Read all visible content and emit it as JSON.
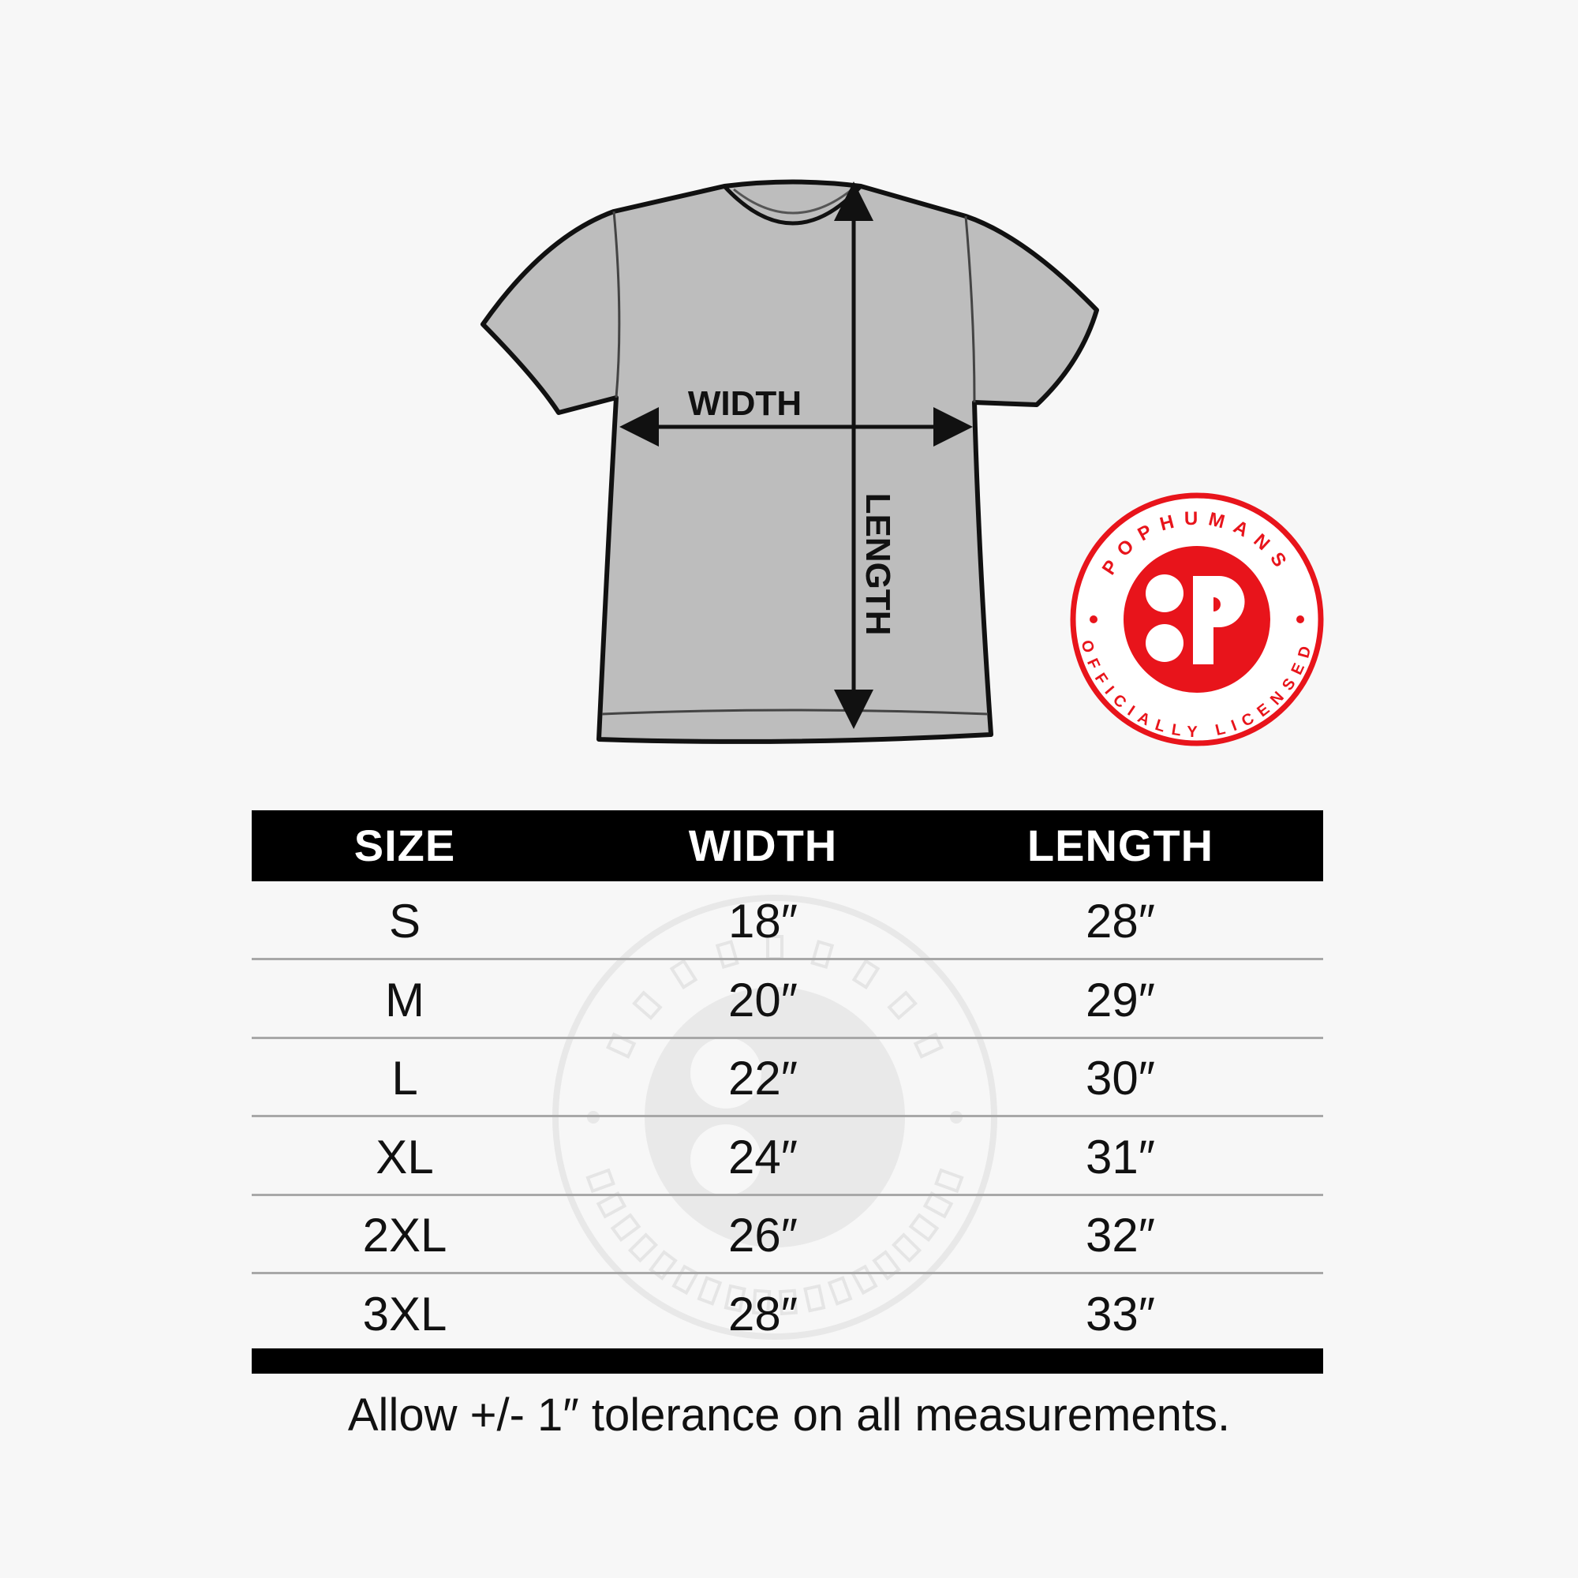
{
  "diagram": {
    "width_label": "WIDTH",
    "length_label": "LENGTH"
  },
  "badge": {
    "brand": "POPHUMANS",
    "subtitle": "OFFICIALLY LICENSED",
    "color": "#e8141b"
  },
  "table": {
    "headers": [
      "SIZE",
      "WIDTH",
      "LENGTH"
    ],
    "rows": [
      [
        "S",
        "18″",
        "28″"
      ],
      [
        "M",
        "20″",
        "29″"
      ],
      [
        "L",
        "22″",
        "30″"
      ],
      [
        "XL",
        "24″",
        "31″"
      ],
      [
        "2XL",
        "26″",
        "32″"
      ],
      [
        "3XL",
        "28″",
        "33″"
      ]
    ]
  },
  "footer": "Allow +/- 1″ tolerance on all measurements."
}
